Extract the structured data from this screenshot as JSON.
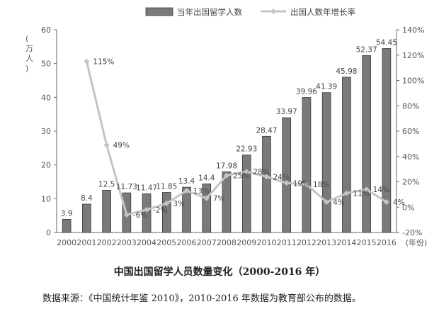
{
  "chart_data": {
    "type": "bar+line",
    "categories": [
      "2000",
      "2001",
      "2002",
      "2003",
      "2004",
      "2005",
      "2006",
      "2007",
      "2008",
      "2009",
      "2010",
      "2011",
      "2012",
      "2013",
      "2014",
      "2015",
      "2016"
    ],
    "series": [
      {
        "name": "当年出国留学人数",
        "type": "bar",
        "axis": "left",
        "values": [
          3.9,
          8.4,
          12.5,
          11.73,
          11.47,
          11.85,
          13.4,
          14.4,
          17.98,
          22.93,
          28.47,
          33.97,
          39.96,
          41.39,
          45.98,
          52.37,
          54.45
        ],
        "labels": [
          "3.9",
          "8.4",
          "12.5",
          "11.73",
          "11.47",
          "11.85",
          "13.4",
          "14.4",
          "17.98",
          "22.93",
          "28.47",
          "33.97",
          "39.96",
          "41.39",
          "45.98",
          "52.37",
          "54.45"
        ]
      },
      {
        "name": "出国人数年增长率",
        "type": "line",
        "axis": "right",
        "values": [
          null,
          115,
          49,
          -6,
          -2,
          3,
          13,
          7,
          25,
          28,
          24,
          19,
          18,
          4,
          11,
          14,
          4
        ],
        "labels": [
          null,
          "115%",
          "49%",
          "-6%",
          "-2%",
          "3%",
          "13%",
          "7%",
          "25%",
          "28%",
          "24%",
          "19%",
          "18%",
          "4%",
          "11%",
          "14%",
          "4%"
        ]
      }
    ],
    "y_left": {
      "label": "(万人)",
      "ylim": [
        0,
        60
      ],
      "ticks": [
        "0",
        "10",
        "20",
        "30",
        "40",
        "50",
        "60"
      ]
    },
    "y_right": {
      "ylim": [
        -20,
        140
      ],
      "ticks": [
        "-20%",
        "0%",
        "20%",
        "40%",
        "60%",
        "80%",
        "100%",
        "120%",
        "140%"
      ]
    },
    "xlabel": "(年份)",
    "legend_position": "top",
    "grid": false,
    "colors": {
      "bar": "#7a7a7a",
      "bar_edge": "#3a3a3a",
      "line": "#c4c4c4",
      "axis": "#666666"
    }
  },
  "title": "中国出国留学人员数量变化（2000-2016 年）",
  "source": "数据来源：《中国统计年鉴 2010》，2010-2016 年数据为教育部公布的数据。"
}
